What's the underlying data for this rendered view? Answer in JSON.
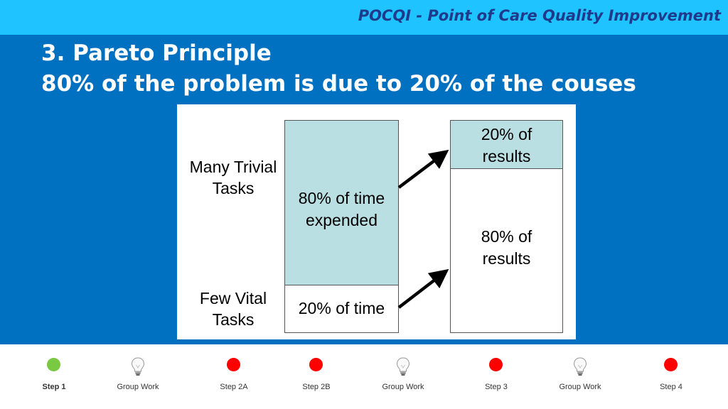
{
  "header": {
    "title": "POCQI - Point of Care Quality Improvement"
  },
  "slide": {
    "title_line1": "3. Pareto Principle",
    "title_line2": "80% of the problem is due to 20% of the couses"
  },
  "diagram": {
    "left_labels": {
      "top": [
        "Many Trivial",
        "Tasks"
      ],
      "bottom": [
        "Few Vital",
        "Tasks"
      ]
    },
    "time_bar": {
      "upper": [
        "80% of time",
        "expended"
      ],
      "lower": "20% of time"
    },
    "results_bar": {
      "upper": [
        "20% of",
        "results"
      ],
      "lower": [
        "80% of",
        "results"
      ]
    },
    "colors": {
      "fill": "#B9DFE3",
      "border": "#555555",
      "arrow": "#000000"
    }
  },
  "footer": {
    "steps": [
      {
        "label": "Step 1",
        "icon": "green-dot-icon",
        "color": "#7AC943",
        "active": true
      },
      {
        "label": "Group Work",
        "icon": "lightbulb-icon"
      },
      {
        "label": "Step 2A",
        "icon": "red-dot-icon",
        "color": "#FF0000"
      },
      {
        "label": "Step 2B",
        "icon": "red-dot-icon",
        "color": "#FF0000"
      },
      {
        "label": "Group Work",
        "icon": "lightbulb-icon"
      },
      {
        "label": "Step 3",
        "icon": "red-dot-icon",
        "color": "#FF0000"
      },
      {
        "label": "Group Work",
        "icon": "lightbulb-icon"
      },
      {
        "label": "Step 4",
        "icon": "red-dot-icon",
        "color": "#FF0000"
      }
    ]
  }
}
